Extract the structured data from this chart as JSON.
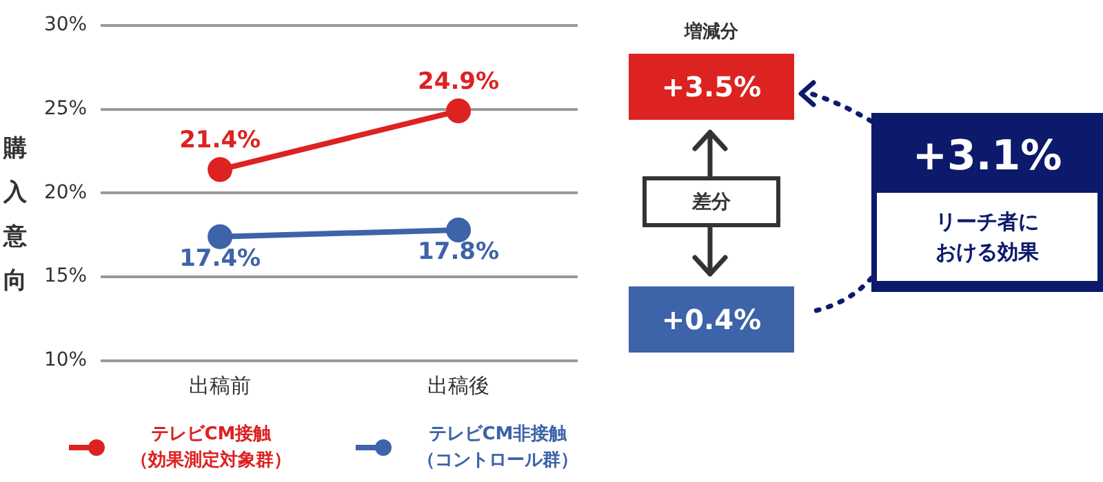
{
  "chart_data": {
    "type": "line",
    "ylabel": "購入意向",
    "categories": [
      "出稿前",
      "出稿後"
    ],
    "series": [
      {
        "name": "テレビCM接触（効果測定対象群）",
        "color": "#dd2222",
        "values": [
          21.4,
          24.9
        ],
        "value_labels": [
          "21.4%",
          "24.9%"
        ]
      },
      {
        "name": "テレビCM非接触（コントロール群）",
        "color": "#3d63a8",
        "values": [
          17.4,
          17.8
        ],
        "value_labels": [
          "17.4%",
          "17.8%"
        ]
      }
    ],
    "ylim": [
      10,
      30
    ],
    "yticks": [
      {
        "value": 10,
        "label": "10%"
      },
      {
        "value": 15,
        "label": "15%"
      },
      {
        "value": 20,
        "label": "20%"
      },
      {
        "value": 25,
        "label": "25%"
      },
      {
        "value": 30,
        "label": "30%"
      }
    ],
    "grid": "y",
    "legend": "bottom",
    "marker": "circle",
    "line_style": "solid",
    "annotations": [
      "増減分",
      "+3.5%",
      "差分",
      "+0.4%",
      "+3.1%",
      "リーチ者における効果"
    ]
  }
}
